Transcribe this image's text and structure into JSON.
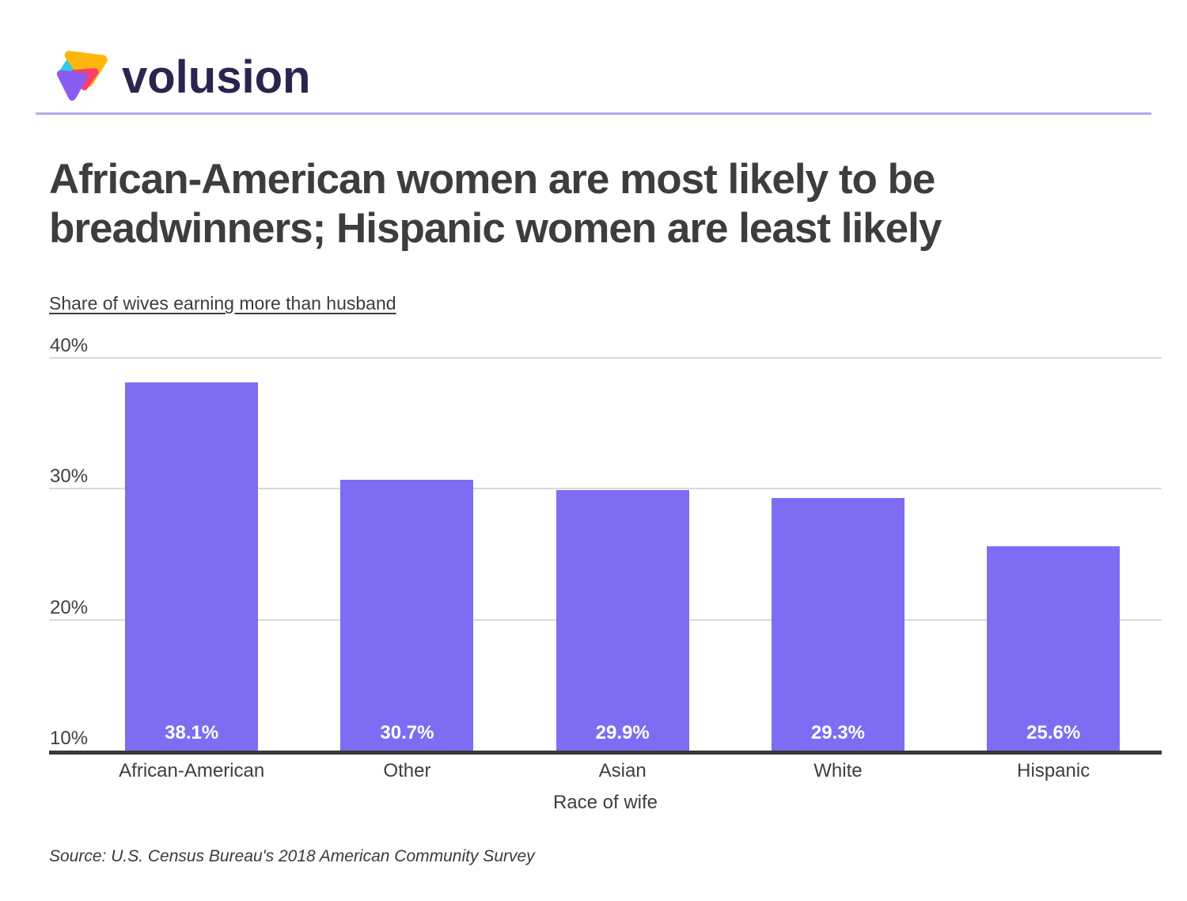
{
  "brand": {
    "name": "volusion",
    "wordmark_color": "#2a2550",
    "logo_mark": "volusion-triangle-logo",
    "logo_colors": {
      "yellow": "#ffb60b",
      "cyan": "#2fc9e2",
      "pink": "#fa3e70",
      "purple": "#8b5cf0"
    },
    "divider_color": "#b7a9e8"
  },
  "title": "African-American women are most likely to be breadwinners; Hispanic women are least likely",
  "subtitle": "Share of wives earning more than husband",
  "source": "Source: U.S. Census Bureau's 2018 American Community Survey",
  "chart_data": {
    "type": "bar",
    "title": "Share of wives earning more than husband",
    "categories": [
      "African-American",
      "Other",
      "Asian",
      "White",
      "Hispanic"
    ],
    "values": [
      38.1,
      30.7,
      29.9,
      29.3,
      25.6
    ],
    "value_labels": [
      "38.1%",
      "30.7%",
      "29.9%",
      "29.3%",
      "25.6%"
    ],
    "xlabel": "Race of wife",
    "ylabel": "",
    "ylim": [
      10,
      40
    ],
    "yticks": [
      "10%",
      "20%",
      "30%",
      "40%"
    ],
    "grid": true,
    "legend": "none",
    "bar_color": "#7e6cf2",
    "axis_color": "#383838",
    "gridline_color": "#d9d9d9",
    "tick_label_color": "#3f3f3f",
    "inside_label_color": "#ffffff"
  }
}
